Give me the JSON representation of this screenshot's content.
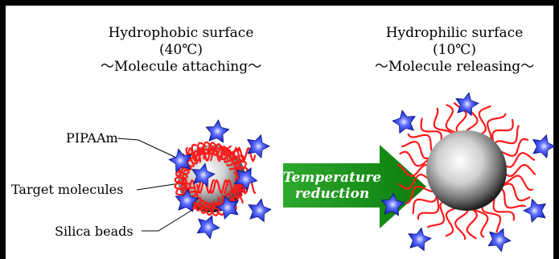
{
  "left_panel": {
    "surface": "Hydrophobic surface",
    "temperature": "(40℃)",
    "state": "～Molecule attaching～"
  },
  "right_panel": {
    "surface": "Hydrophilic surface",
    "temperature": "(10℃)",
    "state": "～Molecule releasing～"
  },
  "labels": {
    "polymer": "PIPAAm",
    "molecules": "Target molecules",
    "beads": "Silica beads"
  },
  "arrow": {
    "line1": "Temperature",
    "line2": "reduction"
  },
  "colors": {
    "polymer": "#ff1a1a",
    "molecule": "#1a2fd6",
    "arrow": "#149614"
  }
}
